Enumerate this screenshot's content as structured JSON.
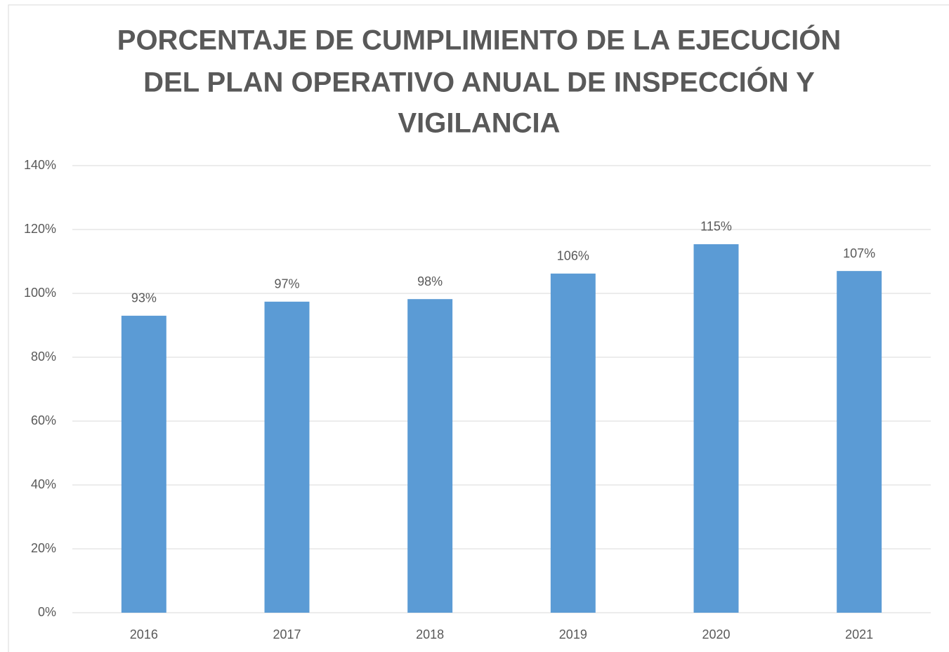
{
  "chart_data": {
    "type": "bar",
    "title": [
      "PORCENTAJE DE CUMPLIMIENTO DE LA EJECUCIÓN",
      "DEL PLAN OPERATIVO ANUAL DE INSPECCIÓN Y",
      "VIGILANCIA"
    ],
    "categories": [
      "2016",
      "2017",
      "2018",
      "2019",
      "2020",
      "2021"
    ],
    "values": [
      93,
      97.4,
      98.2,
      106.2,
      115.4,
      107
    ],
    "value_labels": [
      "93%",
      "97%",
      "98%",
      "106%",
      "115%",
      "107%"
    ],
    "color": "#5b9bd5",
    "ylim": [
      0,
      140
    ],
    "yticks": [
      {
        "value": 0,
        "label": "0%"
      },
      {
        "value": 20,
        "label": "20%"
      },
      {
        "value": 40,
        "label": "40%"
      },
      {
        "value": 60,
        "label": "60%"
      },
      {
        "value": 80,
        "label": "80%"
      },
      {
        "value": 100,
        "label": "100%"
      },
      {
        "value": 120,
        "label": "120%"
      },
      {
        "value": 140,
        "label": "140%"
      }
    ],
    "grid": true
  }
}
